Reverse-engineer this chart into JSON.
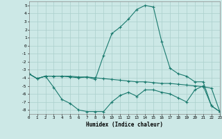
{
  "xlabel": "Humidex (Indice chaleur)",
  "bg_color": "#cce8e6",
  "grid_color": "#aacfcc",
  "line_color": "#1a7a6e",
  "xlim": [
    0,
    23
  ],
  "ylim": [
    -8.5,
    5.5
  ],
  "yticks": [
    5,
    4,
    3,
    2,
    1,
    0,
    -1,
    -2,
    -3,
    -4,
    -5,
    -6,
    -7,
    -8
  ],
  "xtick_labels": [
    "0",
    "1",
    "2",
    "3",
    "4",
    "5",
    "6",
    "7",
    "8",
    "9",
    "10",
    "11",
    "12",
    "13",
    "14",
    "15",
    "16",
    "17",
    "18",
    "19",
    "20",
    "21",
    "22",
    "23"
  ],
  "xticks": [
    0,
    1,
    2,
    3,
    4,
    5,
    6,
    7,
    8,
    9,
    10,
    11,
    12,
    13,
    14,
    15,
    16,
    17,
    18,
    19,
    20,
    21,
    22,
    23
  ],
  "line1_x": [
    0,
    1,
    2,
    3,
    4,
    5,
    6,
    7,
    8,
    9,
    10,
    11,
    12,
    13,
    14,
    15,
    16,
    17,
    18,
    19,
    20,
    21,
    22,
    23
  ],
  "line1_y": [
    -3.5,
    -4.1,
    -3.8,
    -3.8,
    -3.8,
    -3.8,
    -3.9,
    -3.9,
    -4.0,
    -4.1,
    -4.2,
    -4.3,
    -4.4,
    -4.5,
    -4.5,
    -4.6,
    -4.7,
    -4.7,
    -4.8,
    -4.9,
    -5.0,
    -5.1,
    -5.3,
    -8.2
  ],
  "line2_x": [
    0,
    1,
    2,
    3,
    4,
    5,
    6,
    7,
    8,
    9,
    10,
    11,
    12,
    13,
    14,
    15,
    16,
    17,
    18,
    19,
    20,
    21,
    22,
    23
  ],
  "line2_y": [
    -3.5,
    -4.1,
    -3.8,
    -5.2,
    -6.7,
    -7.2,
    -8.0,
    -8.2,
    -8.2,
    -8.2,
    -7.0,
    -6.2,
    -5.8,
    -6.3,
    -5.5,
    -5.5,
    -5.8,
    -6.0,
    -6.5,
    -7.0,
    -5.5,
    -5.0,
    -7.5,
    -8.2
  ],
  "line3_x": [
    0,
    1,
    2,
    3,
    4,
    5,
    6,
    7,
    8,
    9,
    10,
    11,
    12,
    13,
    14,
    15,
    16,
    17,
    18,
    19,
    20,
    21,
    22,
    23
  ],
  "line3_y": [
    -3.5,
    -4.1,
    -3.8,
    -3.8,
    -3.8,
    -3.9,
    -4.0,
    -3.9,
    -4.2,
    -1.2,
    1.5,
    2.3,
    3.3,
    4.5,
    5.0,
    4.8,
    0.5,
    -2.8,
    -3.5,
    -3.8,
    -4.5,
    -4.5,
    -7.5,
    -8.2
  ]
}
